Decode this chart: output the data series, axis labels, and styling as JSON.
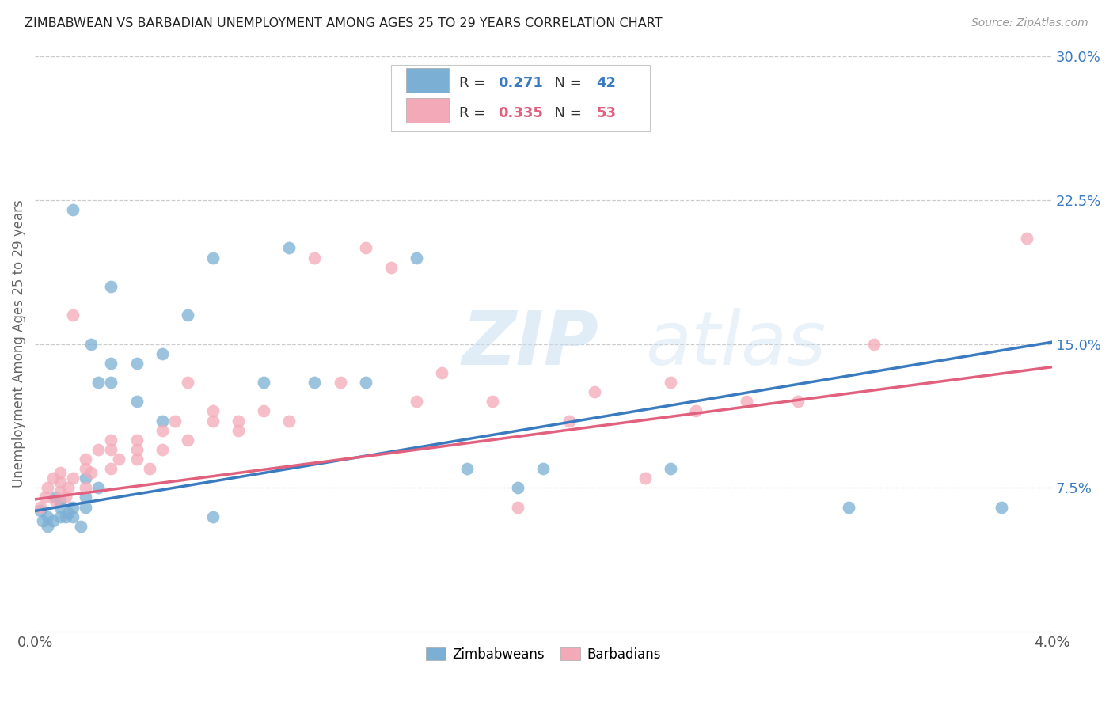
{
  "title": "ZIMBABWEAN VS BARBADIAN UNEMPLOYMENT AMONG AGES 25 TO 29 YEARS CORRELATION CHART",
  "source": "Source: ZipAtlas.com",
  "ylabel": "Unemployment Among Ages 25 to 29 years",
  "xlim": [
    0.0,
    0.04
  ],
  "ylim": [
    0.0,
    0.3
  ],
  "xticks": [
    0.0,
    0.005,
    0.01,
    0.015,
    0.02,
    0.025,
    0.03,
    0.035,
    0.04
  ],
  "yticks_right": [
    0.075,
    0.15,
    0.225,
    0.3
  ],
  "yticklabels_right": [
    "7.5%",
    "15.0%",
    "22.5%",
    "30.0%"
  ],
  "blue_color": "#7bafd4",
  "pink_color": "#f4a9b8",
  "blue_line_color": "#3a7bbf",
  "pink_line_color": "#e0607e",
  "legend_r_blue": "0.271",
  "legend_n_blue": "42",
  "legend_r_pink": "0.335",
  "legend_n_pink": "53",
  "blue_label": "Zimbabweans",
  "pink_label": "Barbadians",
  "watermark_zip": "ZIP",
  "watermark_atlas": "atlas",
  "background_color": "#ffffff",
  "grid_color": "#cccccc",
  "blue_x": [
    0.0002,
    0.0003,
    0.0005,
    0.0005,
    0.0007,
    0.0008,
    0.001,
    0.001,
    0.001,
    0.0012,
    0.0013,
    0.0015,
    0.0015,
    0.0015,
    0.0018,
    0.002,
    0.002,
    0.002,
    0.0022,
    0.0025,
    0.0025,
    0.003,
    0.003,
    0.003,
    0.004,
    0.004,
    0.005,
    0.005,
    0.006,
    0.007,
    0.007,
    0.009,
    0.01,
    0.011,
    0.013,
    0.015,
    0.017,
    0.019,
    0.02,
    0.025,
    0.032,
    0.038
  ],
  "blue_y": [
    0.063,
    0.058,
    0.06,
    0.055,
    0.058,
    0.07,
    0.06,
    0.065,
    0.068,
    0.06,
    0.062,
    0.06,
    0.065,
    0.22,
    0.055,
    0.065,
    0.07,
    0.08,
    0.15,
    0.075,
    0.13,
    0.14,
    0.13,
    0.18,
    0.12,
    0.14,
    0.11,
    0.145,
    0.165,
    0.06,
    0.195,
    0.13,
    0.2,
    0.13,
    0.13,
    0.195,
    0.085,
    0.075,
    0.085,
    0.085,
    0.065,
    0.065
  ],
  "pink_x": [
    0.0002,
    0.0004,
    0.0005,
    0.0007,
    0.0008,
    0.001,
    0.001,
    0.001,
    0.0012,
    0.0013,
    0.0015,
    0.0015,
    0.002,
    0.002,
    0.002,
    0.0022,
    0.0025,
    0.003,
    0.003,
    0.003,
    0.0033,
    0.004,
    0.004,
    0.004,
    0.0045,
    0.005,
    0.005,
    0.0055,
    0.006,
    0.006,
    0.007,
    0.007,
    0.008,
    0.008,
    0.009,
    0.01,
    0.011,
    0.012,
    0.013,
    0.014,
    0.015,
    0.016,
    0.018,
    0.019,
    0.021,
    0.022,
    0.024,
    0.025,
    0.026,
    0.028,
    0.03,
    0.033,
    0.039
  ],
  "pink_y": [
    0.065,
    0.07,
    0.075,
    0.08,
    0.068,
    0.073,
    0.078,
    0.083,
    0.07,
    0.075,
    0.165,
    0.08,
    0.075,
    0.085,
    0.09,
    0.083,
    0.095,
    0.085,
    0.095,
    0.1,
    0.09,
    0.09,
    0.095,
    0.1,
    0.085,
    0.095,
    0.105,
    0.11,
    0.1,
    0.13,
    0.11,
    0.115,
    0.105,
    0.11,
    0.115,
    0.11,
    0.195,
    0.13,
    0.2,
    0.19,
    0.12,
    0.135,
    0.12,
    0.065,
    0.11,
    0.125,
    0.08,
    0.13,
    0.115,
    0.12,
    0.12,
    0.15,
    0.205
  ]
}
